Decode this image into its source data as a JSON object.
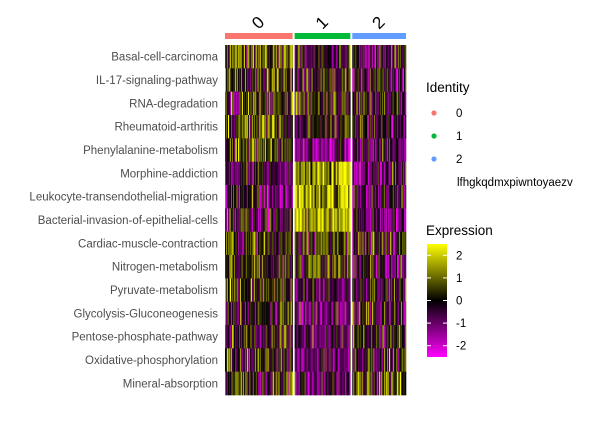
{
  "chart_data": {
    "type": "heatmap",
    "title": "",
    "xlabel": "",
    "ylabel": "",
    "rows": [
      "Basal-cell-carcinoma",
      "IL-17-signaling-pathway",
      "RNA-degradation",
      "Rheumatoid-arthritis",
      "Phenylalanine-metabolism",
      "Morphine-addiction",
      "Leukocyte-transendothelial-migration",
      "Bacterial-invasion-of-epithelial-cells",
      "Cardiac-muscle-contraction",
      "Nitrogen-metabolism",
      "Pyruvate-metabolism",
      "Glycolysis-Gluconeogenesis",
      "Pentose-phosphate-pathway",
      "Oxidative-phosphorylation",
      "Mineral-absorption"
    ],
    "groups": [
      {
        "label": "0",
        "color": "#F8766D",
        "cells": 68
      },
      {
        "label": "1",
        "color": "#00BA38",
        "cells": 56
      },
      {
        "label": "2",
        "color": "#619CFF",
        "cells": 54
      }
    ],
    "group_mean_expression": [
      {
        "group": "0",
        "values": [
          0.8,
          0.6,
          0.3,
          0.6,
          0.7,
          -0.5,
          -0.6,
          -0.5,
          0.3,
          -0.1,
          0.2,
          -0.1,
          0.0,
          0.2,
          0.2
        ]
      },
      {
        "group": "1",
        "values": [
          0.1,
          0.2,
          0.1,
          0.1,
          -1.2,
          1.6,
          1.7,
          1.6,
          0.4,
          0.6,
          -0.6,
          -0.8,
          -0.7,
          -0.7,
          -0.9
        ]
      },
      {
        "group": "2",
        "values": [
          -0.3,
          -0.2,
          -0.1,
          -0.3,
          -0.6,
          -0.7,
          -0.7,
          -0.6,
          -0.1,
          -0.4,
          -0.2,
          0.1,
          -0.1,
          0.1,
          0.8
        ]
      }
    ],
    "color_scale": {
      "low": "#FF00FF",
      "mid": "#000000",
      "high": "#FFFF00",
      "range": [
        -2.5,
        2.5
      ],
      "ticks": [
        2,
        1,
        0,
        -1,
        -2
      ]
    },
    "legend_identity": {
      "title": "Identity",
      "entries": [
        {
          "label": "0",
          "color": "#F8766D"
        },
        {
          "label": "1",
          "color": "#00BA38"
        },
        {
          "label": "2",
          "color": "#619CFF"
        }
      ],
      "extra_text": "lfhgkqdmxpiwntoyaezv"
    },
    "legend_expression": {
      "title": "Expression",
      "tick_labels": [
        "2",
        "1",
        "0",
        "-1",
        "-2"
      ]
    }
  }
}
